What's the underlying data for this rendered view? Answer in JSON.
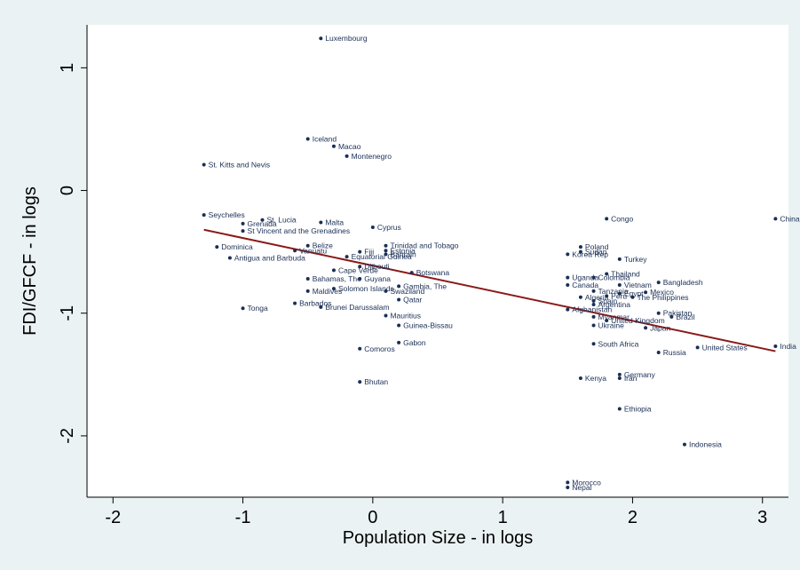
{
  "chart_data": {
    "type": "scatter",
    "xlabel": "Population Size - in logs",
    "ylabel": "FDI/GFCF - in logs",
    "xlim": [
      -2.2,
      3.2
    ],
    "ylim": [
      -2.5,
      1.35
    ],
    "xticks": [
      -2,
      -1,
      0,
      1,
      2,
      3
    ],
    "yticks": [
      -2,
      -1,
      0,
      1
    ],
    "colors": {
      "plot_bg": "#ffffff",
      "outer_bg": "#eaf2f3",
      "point": "#1a2f55",
      "fit_line": "#8b1a1a"
    },
    "fit_line": {
      "x": [
        -1.3,
        3.1
      ],
      "y": [
        -0.32,
        -1.31
      ]
    },
    "points": [
      {
        "label": "Luxembourg",
        "x": -0.4,
        "y": 1.24
      },
      {
        "label": "Iceland",
        "x": -0.5,
        "y": 0.42
      },
      {
        "label": "Macao",
        "x": -0.3,
        "y": 0.36
      },
      {
        "label": "Montenegro",
        "x": -0.2,
        "y": 0.28
      },
      {
        "label": "St. Kitts and Nevis",
        "x": -1.3,
        "y": 0.21
      },
      {
        "label": "Seychelles",
        "x": -1.3,
        "y": -0.2
      },
      {
        "label": "St. Lucia",
        "x": -0.85,
        "y": -0.24
      },
      {
        "label": "Grenada",
        "x": -1.0,
        "y": -0.27
      },
      {
        "label": "Malta",
        "x": -0.4,
        "y": -0.26
      },
      {
        "label": "St Vincent and the Grenadines",
        "x": -1.0,
        "y": -0.33
      },
      {
        "label": "Cyprus",
        "x": 0.0,
        "y": -0.3
      },
      {
        "label": "Dominica",
        "x": -1.2,
        "y": -0.46
      },
      {
        "label": "Belize",
        "x": -0.5,
        "y": -0.45
      },
      {
        "label": "Vanuatu",
        "x": -0.6,
        "y": -0.49
      },
      {
        "label": "Fiji",
        "x": -0.1,
        "y": -0.5
      },
      {
        "label": "Trinidad and Tobago",
        "x": 0.1,
        "y": -0.45
      },
      {
        "label": "Estonia",
        "x": 0.1,
        "y": -0.49
      },
      {
        "label": "Bahrain",
        "x": 0.1,
        "y": -0.52
      },
      {
        "label": "Antigua and Barbuda",
        "x": -1.1,
        "y": -0.55
      },
      {
        "label": "Equatorial Guinea",
        "x": -0.2,
        "y": -0.54
      },
      {
        "label": "Djibouti",
        "x": -0.1,
        "y": -0.62
      },
      {
        "label": "Cape Verde",
        "x": -0.3,
        "y": -0.65
      },
      {
        "label": "Botswana",
        "x": 0.3,
        "y": -0.67
      },
      {
        "label": "Bahamas, The",
        "x": -0.5,
        "y": -0.72
      },
      {
        "label": "Guyana",
        "x": -0.1,
        "y": -0.72
      },
      {
        "label": "Gambia, The",
        "x": 0.2,
        "y": -0.78
      },
      {
        "label": "Solomon Islands",
        "x": -0.3,
        "y": -0.8
      },
      {
        "label": "Swaziland",
        "x": 0.1,
        "y": -0.82
      },
      {
        "label": "Maldives",
        "x": -0.5,
        "y": -0.82
      },
      {
        "label": "Qatar",
        "x": 0.2,
        "y": -0.89
      },
      {
        "label": "Barbados",
        "x": -0.6,
        "y": -0.92
      },
      {
        "label": "Brunei Darussalam",
        "x": -0.4,
        "y": -0.95
      },
      {
        "label": "Tonga",
        "x": -1.0,
        "y": -0.96
      },
      {
        "label": "Mauritius",
        "x": 0.1,
        "y": -1.02
      },
      {
        "label": "Guinea-Bissau",
        "x": 0.2,
        "y": -1.1
      },
      {
        "label": "Gabon",
        "x": 0.2,
        "y": -1.24
      },
      {
        "label": "Comoros",
        "x": -0.1,
        "y": -1.29
      },
      {
        "label": "Bhutan",
        "x": -0.1,
        "y": -1.56
      },
      {
        "label": "Congo",
        "x": 1.8,
        "y": -0.23
      },
      {
        "label": "China",
        "x": 3.1,
        "y": -0.23
      },
      {
        "label": "Poland",
        "x": 1.6,
        "y": -0.46
      },
      {
        "label": "Sudan",
        "x": 1.6,
        "y": -0.5
      },
      {
        "label": "Korea Rep",
        "x": 1.5,
        "y": -0.52
      },
      {
        "label": "Turkey",
        "x": 1.9,
        "y": -0.56
      },
      {
        "label": "Thailand",
        "x": 1.8,
        "y": -0.68
      },
      {
        "label": "Uganda",
        "x": 1.5,
        "y": -0.71
      },
      {
        "label": "Colombia",
        "x": 1.7,
        "y": -0.71
      },
      {
        "label": "Bangladesh",
        "x": 2.2,
        "y": -0.75
      },
      {
        "label": "Canada",
        "x": 1.5,
        "y": -0.77
      },
      {
        "label": "Vietnam",
        "x": 1.9,
        "y": -0.77
      },
      {
        "label": "Tanzania",
        "x": 1.7,
        "y": -0.82
      },
      {
        "label": "Egypt",
        "x": 1.9,
        "y": -0.84
      },
      {
        "label": "Mexico",
        "x": 2.1,
        "y": -0.83
      },
      {
        "label": "Algeria",
        "x": 1.6,
        "y": -0.87
      },
      {
        "label": "Peru",
        "x": 1.8,
        "y": -0.86
      },
      {
        "label": "The Philippines",
        "x": 2.0,
        "y": -0.87
      },
      {
        "label": "Spain",
        "x": 1.7,
        "y": -0.9
      },
      {
        "label": "Argentina",
        "x": 1.7,
        "y": -0.93
      },
      {
        "label": "Afghanistan",
        "x": 1.5,
        "y": -0.97
      },
      {
        "label": "Pakistan",
        "x": 2.2,
        "y": -1.0
      },
      {
        "label": "Myanmar",
        "x": 1.7,
        "y": -1.03
      },
      {
        "label": "Brazil",
        "x": 2.3,
        "y": -1.03
      },
      {
        "label": "United Kingdom",
        "x": 1.8,
        "y": -1.06
      },
      {
        "label": "Ukraine",
        "x": 1.7,
        "y": -1.1
      },
      {
        "label": "Japan",
        "x": 2.1,
        "y": -1.12
      },
      {
        "label": "South Africa",
        "x": 1.7,
        "y": -1.25
      },
      {
        "label": "United States",
        "x": 2.5,
        "y": -1.28
      },
      {
        "label": "India",
        "x": 3.1,
        "y": -1.27
      },
      {
        "label": "Russia",
        "x": 2.2,
        "y": -1.32
      },
      {
        "label": "Germany",
        "x": 1.9,
        "y": -1.5
      },
      {
        "label": "Iran",
        "x": 1.9,
        "y": -1.53
      },
      {
        "label": "Kenya",
        "x": 1.6,
        "y": -1.53
      },
      {
        "label": "Ethiopia",
        "x": 1.9,
        "y": -1.78
      },
      {
        "label": "Indonesia",
        "x": 2.4,
        "y": -2.07
      },
      {
        "label": "Morocco",
        "x": 1.5,
        "y": -2.38
      },
      {
        "label": "Nepal",
        "x": 1.5,
        "y": -2.42
      }
    ]
  }
}
